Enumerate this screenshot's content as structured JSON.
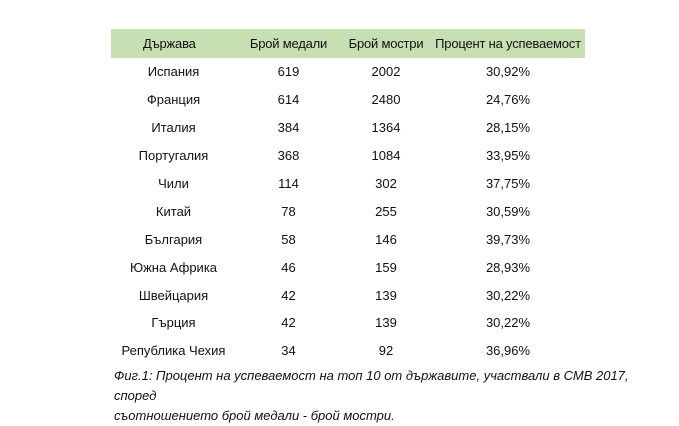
{
  "table": {
    "headers": [
      "Държава",
      "Брой медали",
      "Брой мостри",
      "Процент на успеваемост"
    ],
    "rows": [
      [
        "Испания",
        "619",
        "2002",
        "30,92%"
      ],
      [
        "Франция",
        "614",
        "2480",
        "24,76%"
      ],
      [
        "Италия",
        "384",
        "1364",
        "28,15%"
      ],
      [
        "Португалия",
        "368",
        "1084",
        "33,95%"
      ],
      [
        "Чили",
        "114",
        "302",
        "37,75%"
      ],
      [
        "Китай",
        "78",
        "255",
        "30,59%"
      ],
      [
        "България",
        "58",
        "146",
        "39,73%"
      ],
      [
        "Южна Африка",
        "46",
        "159",
        "28,93%"
      ],
      [
        "Швейцария",
        "42",
        "139",
        "30,22%"
      ],
      [
        "Гърция",
        "42",
        "139",
        "30,22%"
      ],
      [
        "Република Чехия",
        "34",
        "92",
        "36,96%"
      ]
    ]
  },
  "caption": {
    "line1": "Фиг.1: Процент на успеваемост на топ 10 от държавите, участвали в СМВ 2017, според",
    "line2": "съотношението брой медали - брой мостри."
  },
  "colors": {
    "header_bg": "#c6e0b4",
    "text": "#111111"
  }
}
